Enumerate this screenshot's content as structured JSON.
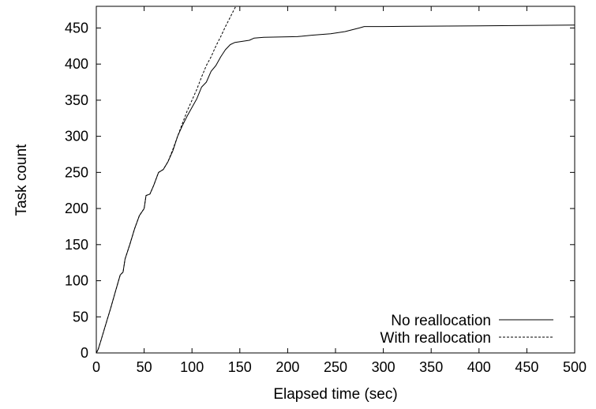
{
  "chart_data": {
    "type": "line",
    "xlabel": "Elapsed time (sec)",
    "ylabel": "Task count",
    "xlim": [
      0,
      500
    ],
    "ylim": [
      0,
      480
    ],
    "x_ticks": [
      "0",
      "50",
      "100",
      "150",
      "200",
      "250",
      "300",
      "350",
      "400",
      "450",
      "500"
    ],
    "y_ticks": [
      "0",
      "50",
      "100",
      "150",
      "200",
      "250",
      "300",
      "350",
      "400",
      "450"
    ],
    "grid": false,
    "legend_position": "bottom-right",
    "series": [
      {
        "name": "No reallocation",
        "style": "solid",
        "color": "#000000",
        "points": [
          [
            0,
            0
          ],
          [
            2,
            5
          ],
          [
            5,
            18
          ],
          [
            10,
            40
          ],
          [
            15,
            62
          ],
          [
            20,
            85
          ],
          [
            25,
            108
          ],
          [
            28,
            112
          ],
          [
            30,
            130
          ],
          [
            35,
            150
          ],
          [
            40,
            172
          ],
          [
            45,
            190
          ],
          [
            50,
            200
          ],
          [
            52,
            218
          ],
          [
            56,
            220
          ],
          [
            60,
            232
          ],
          [
            65,
            250
          ],
          [
            70,
            254
          ],
          [
            75,
            265
          ],
          [
            80,
            280
          ],
          [
            85,
            300
          ],
          [
            90,
            315
          ],
          [
            95,
            328
          ],
          [
            100,
            340
          ],
          [
            105,
            352
          ],
          [
            110,
            368
          ],
          [
            115,
            375
          ],
          [
            120,
            390
          ],
          [
            125,
            398
          ],
          [
            130,
            410
          ],
          [
            135,
            420
          ],
          [
            140,
            427
          ],
          [
            145,
            430
          ],
          [
            160,
            433
          ],
          [
            165,
            436
          ],
          [
            175,
            437
          ],
          [
            210,
            438
          ],
          [
            225,
            440
          ],
          [
            245,
            442
          ],
          [
            260,
            445
          ],
          [
            275,
            450
          ],
          [
            280,
            452
          ],
          [
            300,
            452
          ],
          [
            400,
            453
          ],
          [
            500,
            454
          ]
        ]
      },
      {
        "name": "With reallocation",
        "style": "dashed",
        "color": "#000000",
        "points": [
          [
            0,
            0
          ],
          [
            2,
            5
          ],
          [
            5,
            18
          ],
          [
            10,
            40
          ],
          [
            15,
            62
          ],
          [
            20,
            85
          ],
          [
            25,
            108
          ],
          [
            28,
            112
          ],
          [
            30,
            130
          ],
          [
            35,
            150
          ],
          [
            40,
            172
          ],
          [
            45,
            190
          ],
          [
            50,
            200
          ],
          [
            52,
            218
          ],
          [
            56,
            220
          ],
          [
            60,
            232
          ],
          [
            65,
            250
          ],
          [
            70,
            254
          ],
          [
            75,
            265
          ],
          [
            80,
            282
          ],
          [
            85,
            300
          ],
          [
            90,
            318
          ],
          [
            95,
            335
          ],
          [
            100,
            350
          ],
          [
            105,
            365
          ],
          [
            110,
            382
          ],
          [
            115,
            398
          ],
          [
            120,
            410
          ],
          [
            125,
            425
          ],
          [
            130,
            438
          ],
          [
            135,
            452
          ],
          [
            140,
            465
          ],
          [
            145,
            478
          ],
          [
            146,
            480
          ]
        ]
      }
    ]
  }
}
